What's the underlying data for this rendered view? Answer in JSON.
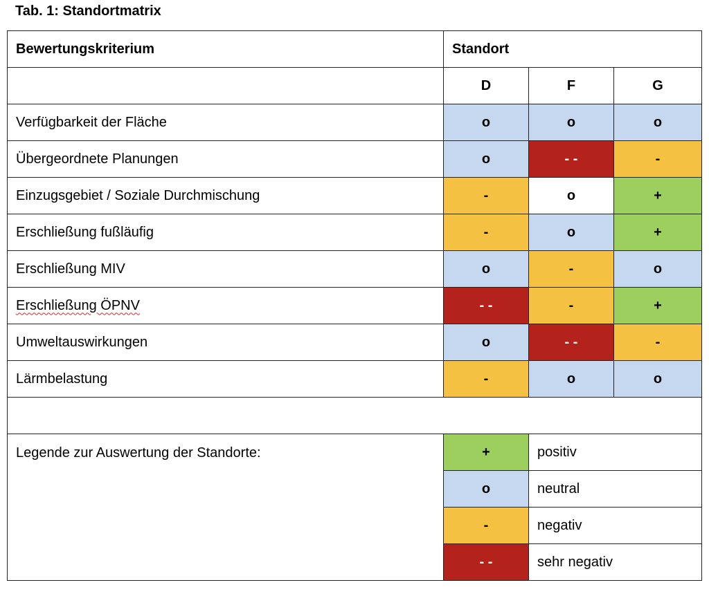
{
  "title": "Tab. 1: Standortmatrix",
  "table": {
    "header": {
      "criterion": "Bewertungskriterium",
      "location": "Standort",
      "sites": [
        "D",
        "F",
        "G"
      ]
    },
    "rows": [
      {
        "criterion": "Verfügbarkeit der Fläche",
        "ratings": [
          {
            "symbol": "o",
            "color": "#c6d8ef"
          },
          {
            "symbol": "o",
            "color": "#c6d8ef"
          },
          {
            "symbol": "o",
            "color": "#c6d8ef"
          }
        ]
      },
      {
        "criterion": "Übergeordnete Planungen",
        "ratings": [
          {
            "symbol": "o",
            "color": "#c6d8ef"
          },
          {
            "symbol": "- -",
            "color": "#b3231b"
          },
          {
            "symbol": "-",
            "color": "#f4c143"
          }
        ]
      },
      {
        "criterion": "Einzugsgebiet / Soziale Durchmischung",
        "ratings": [
          {
            "symbol": "-",
            "color": "#f4c143"
          },
          {
            "symbol": "o",
            "color": "#ffffff"
          },
          {
            "symbol": "+",
            "color": "#9dcf5f"
          }
        ]
      },
      {
        "criterion": "Erschließung fußläufig",
        "ratings": [
          {
            "symbol": "-",
            "color": "#f4c143"
          },
          {
            "symbol": "o",
            "color": "#c6d8ef"
          },
          {
            "symbol": "+",
            "color": "#9dcf5f"
          }
        ]
      },
      {
        "criterion": "Erschließung MIV",
        "ratings": [
          {
            "symbol": "o",
            "color": "#c6d8ef"
          },
          {
            "symbol": "-",
            "color": "#f4c143"
          },
          {
            "symbol": "o",
            "color": "#c6d8ef"
          }
        ]
      },
      {
        "criterion": "Erschließung ÖPNV",
        "ratings": [
          {
            "symbol": "- -",
            "color": "#b3231b"
          },
          {
            "symbol": "-",
            "color": "#f4c143"
          },
          {
            "symbol": "+",
            "color": "#9dcf5f"
          }
        ]
      },
      {
        "criterion": "Umweltauswirkungen",
        "ratings": [
          {
            "symbol": "o",
            "color": "#c6d8ef"
          },
          {
            "symbol": "- -",
            "color": "#b3231b"
          },
          {
            "symbol": "-",
            "color": "#f4c143"
          }
        ]
      },
      {
        "criterion": "Lärmbelastung",
        "ratings": [
          {
            "symbol": "-",
            "color": "#f4c143"
          },
          {
            "symbol": "o",
            "color": "#c6d8ef"
          },
          {
            "symbol": "o",
            "color": "#c6d8ef"
          }
        ]
      }
    ],
    "legend": {
      "title": "Legende zur Auswertung der Standorte:",
      "entries": [
        {
          "symbol": "+",
          "label": "positiv",
          "color": "#9dcf5f"
        },
        {
          "symbol": "o",
          "label": "neutral",
          "color": "#c6d8ef"
        },
        {
          "symbol": "-",
          "label": "negativ",
          "color": "#f4c143"
        },
        {
          "symbol": "- -",
          "label": "sehr negativ",
          "color": "#b3231b"
        }
      ]
    }
  }
}
